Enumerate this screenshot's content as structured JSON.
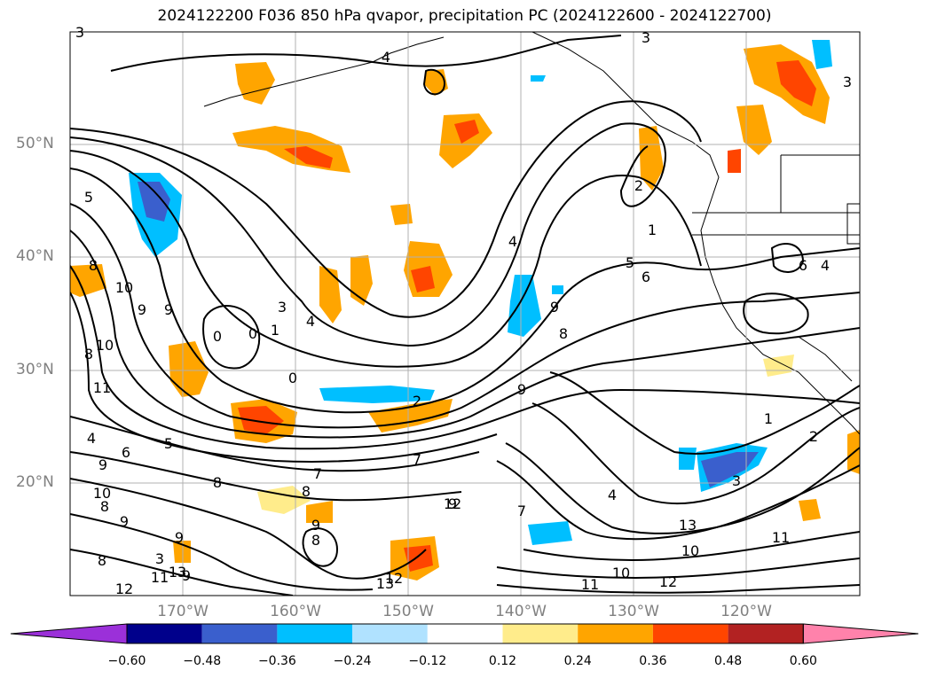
{
  "title": "2024122200 F036 850 hPa qvapor, precipitation PC (2024122600 - 2024122700)",
  "lat_labels": [
    "50°N",
    "40°N",
    "30°N",
    "20°N"
  ],
  "lon_labels": [
    "170°W",
    "160°W",
    "150°W",
    "140°W",
    "130°W",
    "120°W"
  ],
  "colorbar": {
    "ticks": [
      "−0.60",
      "−0.48",
      "−0.36",
      "−0.24",
      "−0.12",
      "0.12",
      "0.24",
      "0.36",
      "0.48",
      "0.60"
    ],
    "colors": [
      "#9b30d9",
      "#00008b",
      "#3a5fcd",
      "#00bfff",
      "#b0e2ff",
      "#ffffff",
      "#ffec8b",
      "#ffa500",
      "#ff4500",
      "#b22222",
      "#ff82ab"
    ]
  },
  "contour_labels": [
    "3",
    "4",
    "3",
    "3",
    "2",
    "5",
    "10",
    "8",
    "9",
    "10",
    "8",
    "11",
    "9",
    "0",
    "0",
    "1",
    "3",
    "4",
    "0",
    "4",
    "2",
    "1",
    "5",
    "6",
    "6",
    "4",
    "8",
    "9",
    "9",
    "1",
    "2",
    "3",
    "7",
    "4",
    "6",
    "5",
    "9",
    "8",
    "10",
    "9",
    "8",
    "9",
    "7",
    "7",
    "8",
    "9",
    "9",
    "8",
    "3",
    "9",
    "4",
    "13",
    "12",
    "12",
    "11",
    "13",
    "10",
    "12",
    "11",
    "13",
    "12",
    "11",
    "10",
    "8"
  ]
}
